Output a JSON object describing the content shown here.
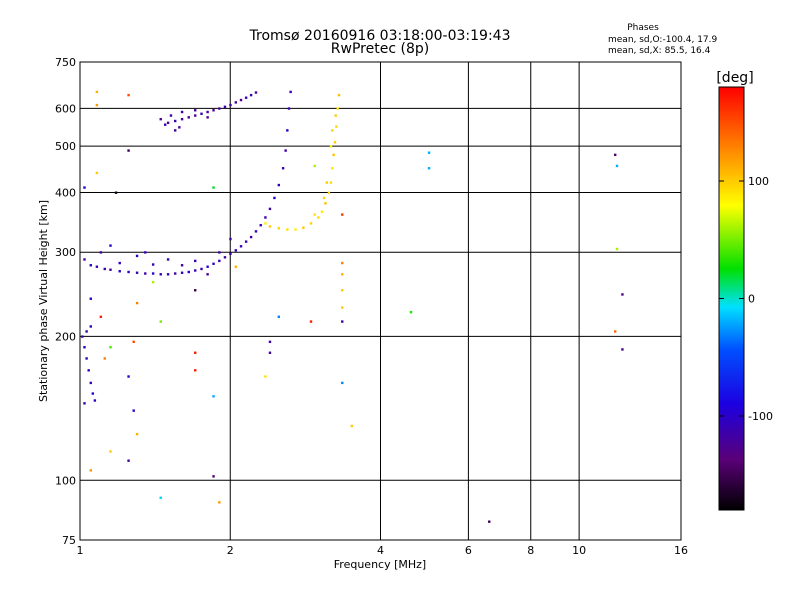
{
  "chart_data": {
    "type": "scatter",
    "title": "Tromsø 20160916 03:18:00-03:19:43",
    "subtitle": "RwPretec (8p)",
    "xlabel": "Frequency [MHz]",
    "ylabel": "Stationary phase Virtual Height [km]",
    "x_scale": "log",
    "y_scale": "log",
    "xlim": [
      1,
      16
    ],
    "ylim": [
      75,
      750
    ],
    "x_ticks": [
      1,
      2,
      4,
      6,
      8,
      10,
      16
    ],
    "x_tick_labels": [
      "1",
      "2",
      "4",
      "6",
      "8",
      "10",
      "16"
    ],
    "y_ticks": [
      75,
      100,
      200,
      300,
      400,
      500,
      600,
      750
    ],
    "y_tick_labels": [
      "75",
      "100",
      "200",
      "300",
      "400",
      "500",
      "600",
      "750"
    ],
    "grid": true,
    "stats": {
      "heading": "Phases",
      "line_o": "mean, sd,O:-100.4, 17.9",
      "line_x": "mean, sd,X:  85.5, 16.4"
    },
    "colorbar": {
      "unit": "[deg]",
      "range": [
        -180,
        180
      ],
      "ticks": [
        -100,
        0,
        100
      ],
      "tick_labels": [
        "-100",
        "0",
        "100"
      ]
    },
    "series": [
      {
        "trace": "o-mode lower",
        "phase": -110,
        "points": [
          [
            1.02,
            290
          ],
          [
            1.05,
            282
          ],
          [
            1.08,
            280
          ],
          [
            1.12,
            277
          ],
          [
            1.15,
            276
          ],
          [
            1.2,
            274
          ],
          [
            1.25,
            273
          ],
          [
            1.3,
            272
          ],
          [
            1.35,
            271
          ],
          [
            1.4,
            271
          ],
          [
            1.45,
            270
          ],
          [
            1.5,
            270
          ],
          [
            1.55,
            271
          ],
          [
            1.6,
            272
          ],
          [
            1.65,
            273
          ],
          [
            1.7,
            275
          ],
          [
            1.75,
            277
          ],
          [
            1.8,
            280
          ],
          [
            1.85,
            284
          ],
          [
            1.9,
            288
          ],
          [
            1.95,
            293
          ],
          [
            2.0,
            298
          ],
          [
            2.05,
            303
          ],
          [
            2.1,
            309
          ],
          [
            2.15,
            316
          ],
          [
            2.2,
            323
          ],
          [
            2.25,
            332
          ],
          [
            2.3,
            342
          ],
          [
            2.35,
            355
          ],
          [
            2.4,
            370
          ],
          [
            2.45,
            390
          ],
          [
            2.5,
            415
          ],
          [
            2.55,
            450
          ],
          [
            2.58,
            490
          ],
          [
            2.6,
            540
          ],
          [
            2.62,
            600
          ],
          [
            2.64,
            650
          ],
          [
            1.1,
            300
          ],
          [
            1.3,
            295
          ],
          [
            1.5,
            290
          ],
          [
            1.7,
            288
          ],
          [
            1.9,
            300
          ],
          [
            2.0,
            320
          ],
          [
            1.2,
            285
          ],
          [
            1.4,
            283
          ],
          [
            1.6,
            282
          ],
          [
            1.8,
            270
          ],
          [
            1.15,
            310
          ],
          [
            1.35,
            300
          ]
        ]
      },
      {
        "trace": "o-mode upper",
        "phase": -120,
        "points": [
          [
            1.5,
            560
          ],
          [
            1.55,
            565
          ],
          [
            1.6,
            570
          ],
          [
            1.65,
            575
          ],
          [
            1.7,
            580
          ],
          [
            1.75,
            585
          ],
          [
            1.8,
            590
          ],
          [
            1.85,
            595
          ],
          [
            1.9,
            600
          ],
          [
            1.95,
            605
          ],
          [
            2.0,
            610
          ],
          [
            2.05,
            618
          ],
          [
            2.1,
            625
          ],
          [
            2.15,
            632
          ],
          [
            2.2,
            640
          ],
          [
            2.25,
            648
          ],
          [
            1.45,
            570
          ],
          [
            1.48,
            555
          ],
          [
            1.52,
            580
          ],
          [
            1.58,
            548
          ],
          [
            1.7,
            595
          ],
          [
            1.8,
            575
          ],
          [
            1.6,
            590
          ],
          [
            1.55,
            540
          ]
        ]
      },
      {
        "trace": "o-mode low-frequency tail",
        "phase": -105,
        "points": [
          [
            1.01,
            200
          ],
          [
            1.02,
            190
          ],
          [
            1.03,
            180
          ],
          [
            1.04,
            170
          ],
          [
            1.05,
            160
          ],
          [
            1.06,
            152
          ],
          [
            1.07,
            147
          ],
          [
            1.02,
            145
          ],
          [
            1.03,
            205
          ],
          [
            1.05,
            210
          ]
        ]
      },
      {
        "trace": "x-mode",
        "phase": 95,
        "points": [
          [
            2.35,
            345
          ],
          [
            2.4,
            340
          ],
          [
            2.5,
            337
          ],
          [
            2.6,
            335
          ],
          [
            2.7,
            335
          ],
          [
            2.8,
            338
          ],
          [
            2.9,
            345
          ],
          [
            3.0,
            355
          ],
          [
            3.05,
            365
          ],
          [
            3.1,
            380
          ],
          [
            3.15,
            400
          ],
          [
            3.18,
            420
          ],
          [
            3.2,
            450
          ],
          [
            3.22,
            480
          ],
          [
            3.24,
            510
          ],
          [
            3.26,
            550
          ],
          [
            3.28,
            600
          ],
          [
            3.3,
            640
          ],
          [
            3.12,
            420
          ],
          [
            3.08,
            390
          ],
          [
            2.95,
            360
          ],
          [
            3.18,
            500
          ],
          [
            3.25,
            580
          ],
          [
            3.2,
            540
          ]
        ]
      },
      {
        "trace": "scattered echoes",
        "phase": null,
        "points": [
          {
            "x": 1.08,
            "y": 650,
            "phase": 110
          },
          {
            "x": 1.25,
            "y": 640,
            "phase": 150
          },
          {
            "x": 1.08,
            "y": 610,
            "phase": 120
          },
          {
            "x": 1.25,
            "y": 490,
            "phase": -150
          },
          {
            "x": 1.08,
            "y": 440,
            "phase": 100
          },
          {
            "x": 1.18,
            "y": 400,
            "phase": -170
          },
          {
            "x": 1.02,
            "y": 410,
            "phase": -90
          },
          {
            "x": 1.85,
            "y": 410,
            "phase": 20
          },
          {
            "x": 1.4,
            "y": 260,
            "phase": 60
          },
          {
            "x": 1.05,
            "y": 240,
            "phase": -100
          },
          {
            "x": 1.1,
            "y": 220,
            "phase": 170
          },
          {
            "x": 1.3,
            "y": 235,
            "phase": 130
          },
          {
            "x": 1.45,
            "y": 215,
            "phase": 50
          },
          {
            "x": 1.7,
            "y": 250,
            "phase": -150
          },
          {
            "x": 1.28,
            "y": 195,
            "phase": 150
          },
          {
            "x": 1.12,
            "y": 180,
            "phase": 130
          },
          {
            "x": 1.15,
            "y": 190,
            "phase": 40
          },
          {
            "x": 1.7,
            "y": 185,
            "phase": 170
          },
          {
            "x": 1.7,
            "y": 170,
            "phase": 170
          },
          {
            "x": 1.25,
            "y": 165,
            "phase": -100
          },
          {
            "x": 1.28,
            "y": 140,
            "phase": -100
          },
          {
            "x": 1.3,
            "y": 125,
            "phase": 110
          },
          {
            "x": 1.15,
            "y": 115,
            "phase": 100
          },
          {
            "x": 1.25,
            "y": 110,
            "phase": -120
          },
          {
            "x": 1.05,
            "y": 105,
            "phase": 120
          },
          {
            "x": 1.85,
            "y": 150,
            "phase": -20
          },
          {
            "x": 1.85,
            "y": 102,
            "phase": -140
          },
          {
            "x": 1.9,
            "y": 90,
            "phase": 120
          },
          {
            "x": 1.45,
            "y": 92,
            "phase": -10
          },
          {
            "x": 2.4,
            "y": 195,
            "phase": -120
          },
          {
            "x": 2.4,
            "y": 185,
            "phase": -120
          },
          {
            "x": 2.35,
            "y": 165,
            "phase": 90
          },
          {
            "x": 2.5,
            "y": 220,
            "phase": -30
          },
          {
            "x": 2.9,
            "y": 215,
            "phase": 170
          },
          {
            "x": 3.35,
            "y": 215,
            "phase": -120
          },
          {
            "x": 3.35,
            "y": 230,
            "phase": 100
          },
          {
            "x": 3.35,
            "y": 250,
            "phase": 100
          },
          {
            "x": 3.35,
            "y": 270,
            "phase": 110
          },
          {
            "x": 3.35,
            "y": 285,
            "phase": 130
          },
          {
            "x": 3.35,
            "y": 360,
            "phase": 160
          },
          {
            "x": 3.35,
            "y": 160,
            "phase": -30
          },
          {
            "x": 3.5,
            "y": 130,
            "phase": 100
          },
          {
            "x": 2.95,
            "y": 455,
            "phase": 60
          },
          {
            "x": 2.05,
            "y": 280,
            "phase": 110
          },
          {
            "x": 4.6,
            "y": 225,
            "phase": 30
          },
          {
            "x": 5.0,
            "y": 485,
            "phase": -20
          },
          {
            "x": 5.0,
            "y": 450,
            "phase": -20
          },
          {
            "x": 6.6,
            "y": 82,
            "phase": -150
          },
          {
            "x": 11.8,
            "y": 480,
            "phase": -140
          },
          {
            "x": 11.9,
            "y": 455,
            "phase": -20
          },
          {
            "x": 11.9,
            "y": 305,
            "phase": 60
          },
          {
            "x": 12.2,
            "y": 245,
            "phase": -130
          },
          {
            "x": 11.8,
            "y": 205,
            "phase": 140
          },
          {
            "x": 12.2,
            "y": 188,
            "phase": -130
          }
        ]
      }
    ]
  }
}
